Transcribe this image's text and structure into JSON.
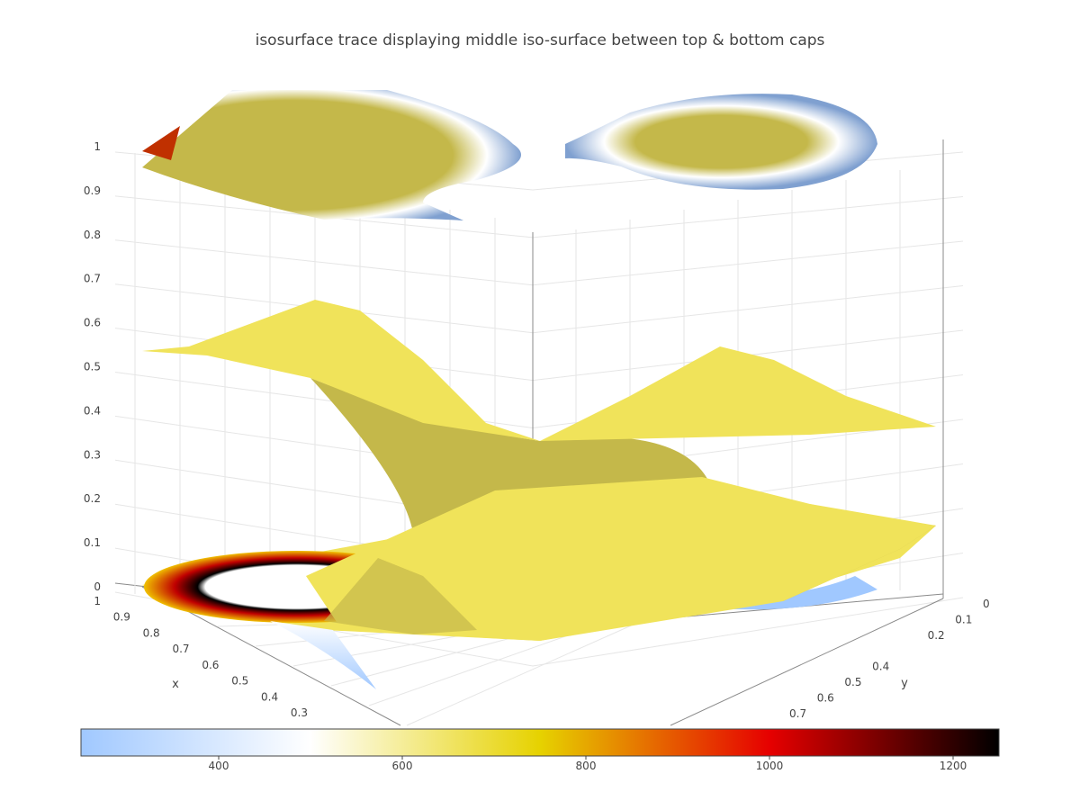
{
  "chart_data": {
    "type": "isosurface",
    "title": "isosurface trace displaying middle iso-surface between top & bottom caps",
    "axes": {
      "x": {
        "title": "x",
        "ticks": [
          0.3,
          0.4,
          0.5,
          0.6,
          0.7,
          0.8,
          0.9,
          1
        ]
      },
      "y": {
        "title": "y",
        "ticks": [
          0,
          0.1,
          0.2,
          0.4,
          0.5,
          0.6,
          0.7
        ]
      },
      "z": {
        "title": "",
        "ticks": [
          0,
          0.1,
          0.2,
          0.3,
          0.4,
          0.5,
          0.6,
          0.7,
          0.8,
          0.9,
          1
        ]
      }
    },
    "colorbar": {
      "orientation": "horizontal",
      "range": [
        250,
        1250
      ],
      "ticks": [
        400,
        600,
        800,
        1000,
        1200
      ],
      "colorscale": [
        {
          "v": 0.0,
          "color": "#a0c8ff"
        },
        {
          "v": 0.25,
          "color": "#ffffff"
        },
        {
          "v": 0.5,
          "color": "#e6d200"
        },
        {
          "v": 0.75,
          "color": "#e60000"
        },
        {
          "v": 1.0,
          "color": "#000000"
        }
      ]
    },
    "surfaces": [
      {
        "name": "middle iso-surface",
        "color": "#f0e35a",
        "shade": "#c4b84a"
      },
      {
        "name": "top cap",
        "color": "#c4b84a",
        "edge": "#7fa0d0"
      },
      {
        "name": "bottom cap",
        "color": "#f0e35a",
        "edge": "#a0c8ff"
      }
    ]
  }
}
